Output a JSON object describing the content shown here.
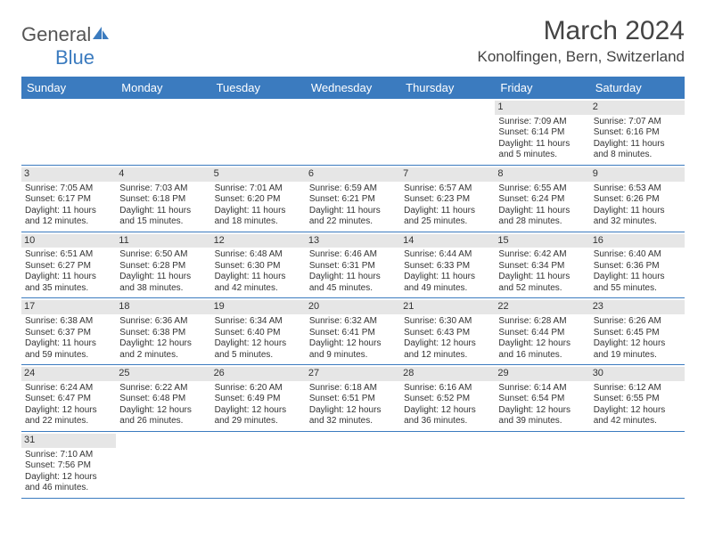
{
  "brand": {
    "name_part1": "General",
    "name_part2": "Blue"
  },
  "title": "March 2024",
  "location": "Konolfingen, Bern, Switzerland",
  "colors": {
    "header_bg": "#3b7bbf",
    "daynum_bg": "#e6e6e6",
    "week_border": "#3b7bbf",
    "text": "#333333",
    "background": "#ffffff"
  },
  "weekdays": [
    "Sunday",
    "Monday",
    "Tuesday",
    "Wednesday",
    "Thursday",
    "Friday",
    "Saturday"
  ],
  "weeks": [
    [
      null,
      null,
      null,
      null,
      null,
      {
        "n": "1",
        "sr": "Sunrise: 7:09 AM",
        "ss": "Sunset: 6:14 PM",
        "d1": "Daylight: 11 hours",
        "d2": "and 5 minutes."
      },
      {
        "n": "2",
        "sr": "Sunrise: 7:07 AM",
        "ss": "Sunset: 6:16 PM",
        "d1": "Daylight: 11 hours",
        "d2": "and 8 minutes."
      }
    ],
    [
      {
        "n": "3",
        "sr": "Sunrise: 7:05 AM",
        "ss": "Sunset: 6:17 PM",
        "d1": "Daylight: 11 hours",
        "d2": "and 12 minutes."
      },
      {
        "n": "4",
        "sr": "Sunrise: 7:03 AM",
        "ss": "Sunset: 6:18 PM",
        "d1": "Daylight: 11 hours",
        "d2": "and 15 minutes."
      },
      {
        "n": "5",
        "sr": "Sunrise: 7:01 AM",
        "ss": "Sunset: 6:20 PM",
        "d1": "Daylight: 11 hours",
        "d2": "and 18 minutes."
      },
      {
        "n": "6",
        "sr": "Sunrise: 6:59 AM",
        "ss": "Sunset: 6:21 PM",
        "d1": "Daylight: 11 hours",
        "d2": "and 22 minutes."
      },
      {
        "n": "7",
        "sr": "Sunrise: 6:57 AM",
        "ss": "Sunset: 6:23 PM",
        "d1": "Daylight: 11 hours",
        "d2": "and 25 minutes."
      },
      {
        "n": "8",
        "sr": "Sunrise: 6:55 AM",
        "ss": "Sunset: 6:24 PM",
        "d1": "Daylight: 11 hours",
        "d2": "and 28 minutes."
      },
      {
        "n": "9",
        "sr": "Sunrise: 6:53 AM",
        "ss": "Sunset: 6:26 PM",
        "d1": "Daylight: 11 hours",
        "d2": "and 32 minutes."
      }
    ],
    [
      {
        "n": "10",
        "sr": "Sunrise: 6:51 AM",
        "ss": "Sunset: 6:27 PM",
        "d1": "Daylight: 11 hours",
        "d2": "and 35 minutes."
      },
      {
        "n": "11",
        "sr": "Sunrise: 6:50 AM",
        "ss": "Sunset: 6:28 PM",
        "d1": "Daylight: 11 hours",
        "d2": "and 38 minutes."
      },
      {
        "n": "12",
        "sr": "Sunrise: 6:48 AM",
        "ss": "Sunset: 6:30 PM",
        "d1": "Daylight: 11 hours",
        "d2": "and 42 minutes."
      },
      {
        "n": "13",
        "sr": "Sunrise: 6:46 AM",
        "ss": "Sunset: 6:31 PM",
        "d1": "Daylight: 11 hours",
        "d2": "and 45 minutes."
      },
      {
        "n": "14",
        "sr": "Sunrise: 6:44 AM",
        "ss": "Sunset: 6:33 PM",
        "d1": "Daylight: 11 hours",
        "d2": "and 49 minutes."
      },
      {
        "n": "15",
        "sr": "Sunrise: 6:42 AM",
        "ss": "Sunset: 6:34 PM",
        "d1": "Daylight: 11 hours",
        "d2": "and 52 minutes."
      },
      {
        "n": "16",
        "sr": "Sunrise: 6:40 AM",
        "ss": "Sunset: 6:36 PM",
        "d1": "Daylight: 11 hours",
        "d2": "and 55 minutes."
      }
    ],
    [
      {
        "n": "17",
        "sr": "Sunrise: 6:38 AM",
        "ss": "Sunset: 6:37 PM",
        "d1": "Daylight: 11 hours",
        "d2": "and 59 minutes."
      },
      {
        "n": "18",
        "sr": "Sunrise: 6:36 AM",
        "ss": "Sunset: 6:38 PM",
        "d1": "Daylight: 12 hours",
        "d2": "and 2 minutes."
      },
      {
        "n": "19",
        "sr": "Sunrise: 6:34 AM",
        "ss": "Sunset: 6:40 PM",
        "d1": "Daylight: 12 hours",
        "d2": "and 5 minutes."
      },
      {
        "n": "20",
        "sr": "Sunrise: 6:32 AM",
        "ss": "Sunset: 6:41 PM",
        "d1": "Daylight: 12 hours",
        "d2": "and 9 minutes."
      },
      {
        "n": "21",
        "sr": "Sunrise: 6:30 AM",
        "ss": "Sunset: 6:43 PM",
        "d1": "Daylight: 12 hours",
        "d2": "and 12 minutes."
      },
      {
        "n": "22",
        "sr": "Sunrise: 6:28 AM",
        "ss": "Sunset: 6:44 PM",
        "d1": "Daylight: 12 hours",
        "d2": "and 16 minutes."
      },
      {
        "n": "23",
        "sr": "Sunrise: 6:26 AM",
        "ss": "Sunset: 6:45 PM",
        "d1": "Daylight: 12 hours",
        "d2": "and 19 minutes."
      }
    ],
    [
      {
        "n": "24",
        "sr": "Sunrise: 6:24 AM",
        "ss": "Sunset: 6:47 PM",
        "d1": "Daylight: 12 hours",
        "d2": "and 22 minutes."
      },
      {
        "n": "25",
        "sr": "Sunrise: 6:22 AM",
        "ss": "Sunset: 6:48 PM",
        "d1": "Daylight: 12 hours",
        "d2": "and 26 minutes."
      },
      {
        "n": "26",
        "sr": "Sunrise: 6:20 AM",
        "ss": "Sunset: 6:49 PM",
        "d1": "Daylight: 12 hours",
        "d2": "and 29 minutes."
      },
      {
        "n": "27",
        "sr": "Sunrise: 6:18 AM",
        "ss": "Sunset: 6:51 PM",
        "d1": "Daylight: 12 hours",
        "d2": "and 32 minutes."
      },
      {
        "n": "28",
        "sr": "Sunrise: 6:16 AM",
        "ss": "Sunset: 6:52 PM",
        "d1": "Daylight: 12 hours",
        "d2": "and 36 minutes."
      },
      {
        "n": "29",
        "sr": "Sunrise: 6:14 AM",
        "ss": "Sunset: 6:54 PM",
        "d1": "Daylight: 12 hours",
        "d2": "and 39 minutes."
      },
      {
        "n": "30",
        "sr": "Sunrise: 6:12 AM",
        "ss": "Sunset: 6:55 PM",
        "d1": "Daylight: 12 hours",
        "d2": "and 42 minutes."
      }
    ],
    [
      {
        "n": "31",
        "sr": "Sunrise: 7:10 AM",
        "ss": "Sunset: 7:56 PM",
        "d1": "Daylight: 12 hours",
        "d2": "and 46 minutes."
      },
      null,
      null,
      null,
      null,
      null,
      null
    ]
  ]
}
